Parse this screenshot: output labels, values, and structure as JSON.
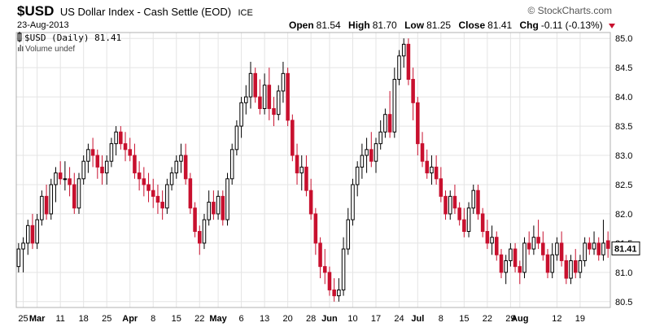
{
  "header": {
    "symbol": "$USD",
    "description": "US Dollar Index - Cash Settle (EOD)",
    "exchange": "ICE",
    "brand": "© StockCharts.com",
    "date": "23-Aug-2013",
    "quote": {
      "open_label": "Open",
      "open": "81.54",
      "high_label": "High",
      "high": "81.70",
      "low_label": "Low",
      "low": "81.25",
      "close_label": "Close",
      "close": "81.41",
      "chg_label": "Chg",
      "chg": "-0.11 (-0.13%)"
    }
  },
  "legend": {
    "series": "$USD (Daily) 81.41",
    "volume": "Volume undef"
  },
  "colors": {
    "up": "#000000",
    "down": "#c8102e",
    "grid": "#e4e4e4",
    "frame": "#b0b0b0"
  },
  "chart_data": {
    "type": "candlestick",
    "y_ticks": [
      80.5,
      81.0,
      81.5,
      82.0,
      82.5,
      83.0,
      83.5,
      84.0,
      84.5,
      85.0
    ],
    "ylim": [
      80.4,
      85.1
    ],
    "last_price": "81.41",
    "x_ticks": [
      {
        "label": "25",
        "bold": false
      },
      {
        "label": "Mar",
        "bold": true
      },
      {
        "label": "11",
        "bold": false
      },
      {
        "label": "18",
        "bold": false
      },
      {
        "label": "25",
        "bold": false
      },
      {
        "label": "Apr",
        "bold": true
      },
      {
        "label": "8",
        "bold": false
      },
      {
        "label": "15",
        "bold": false
      },
      {
        "label": "22",
        "bold": false
      },
      {
        "label": "May",
        "bold": true
      },
      {
        "label": "6",
        "bold": false
      },
      {
        "label": "13",
        "bold": false
      },
      {
        "label": "20",
        "bold": false
      },
      {
        "label": "28",
        "bold": false
      },
      {
        "label": "Jun",
        "bold": true
      },
      {
        "label": "10",
        "bold": false
      },
      {
        "label": "17",
        "bold": false
      },
      {
        "label": "24",
        "bold": false
      },
      {
        "label": "Jul",
        "bold": true
      },
      {
        "label": "8",
        "bold": false
      },
      {
        "label": "15",
        "bold": false
      },
      {
        "label": "22",
        "bold": false
      },
      {
        "label": "29",
        "bold": false
      },
      {
        "label": "Aug",
        "bold": true
      },
      {
        "label": "12",
        "bold": false
      },
      {
        "label": "19",
        "bold": false
      }
    ],
    "x_tick_index": [
      1,
      4,
      9,
      14,
      19,
      24,
      29,
      34,
      39,
      43,
      48,
      53,
      58,
      63,
      67,
      72,
      77,
      82,
      86,
      91,
      96,
      101,
      106,
      108,
      116,
      121
    ],
    "ohlc": [
      [
        81.1,
        81.5,
        81.0,
        81.4
      ],
      [
        81.4,
        81.6,
        81.0,
        81.5
      ],
      [
        81.5,
        81.9,
        81.3,
        81.8
      ],
      [
        81.8,
        82.0,
        81.4,
        81.5
      ],
      [
        81.5,
        82.0,
        81.4,
        81.9
      ],
      [
        81.9,
        82.4,
        81.8,
        82.3
      ],
      [
        82.3,
        82.5,
        81.9,
        82.0
      ],
      [
        82.0,
        82.6,
        81.9,
        82.5
      ],
      [
        82.5,
        82.8,
        82.2,
        82.7
      ],
      [
        82.7,
        82.9,
        82.5,
        82.6
      ],
      [
        82.6,
        82.9,
        82.4,
        82.6
      ],
      [
        82.6,
        82.8,
        82.3,
        82.5
      ],
      [
        82.5,
        82.7,
        82.0,
        82.1
      ],
      [
        82.1,
        82.7,
        82.0,
        82.6
      ],
      [
        82.6,
        83.0,
        82.5,
        82.9
      ],
      [
        82.9,
        83.2,
        82.7,
        83.1
      ],
      [
        83.1,
        83.3,
        82.8,
        83.0
      ],
      [
        83.0,
        83.1,
        82.6,
        82.8
      ],
      [
        82.8,
        83.0,
        82.5,
        82.7
      ],
      [
        82.7,
        83.0,
        82.5,
        82.9
      ],
      [
        82.9,
        83.3,
        82.8,
        83.2
      ],
      [
        83.2,
        83.5,
        83.0,
        83.4
      ],
      [
        83.4,
        83.5,
        83.1,
        83.2
      ],
      [
        83.2,
        83.4,
        82.9,
        83.1
      ],
      [
        83.1,
        83.3,
        82.9,
        83.0
      ],
      [
        83.0,
        83.2,
        82.6,
        82.7
      ],
      [
        82.7,
        82.9,
        82.4,
        82.6
      ],
      [
        82.6,
        82.8,
        82.3,
        82.5
      ],
      [
        82.5,
        82.7,
        82.2,
        82.4
      ],
      [
        82.4,
        82.6,
        82.1,
        82.3
      ],
      [
        82.3,
        82.5,
        82.0,
        82.2
      ],
      [
        82.2,
        82.4,
        81.9,
        82.1
      ],
      [
        82.1,
        82.6,
        82.0,
        82.5
      ],
      [
        82.5,
        82.8,
        82.4,
        82.7
      ],
      [
        82.7,
        83.0,
        82.6,
        82.9
      ],
      [
        82.9,
        83.2,
        82.7,
        83.0
      ],
      [
        83.0,
        83.2,
        82.5,
        82.6
      ],
      [
        82.6,
        82.7,
        82.0,
        82.1
      ],
      [
        82.1,
        82.2,
        81.6,
        81.7
      ],
      [
        81.7,
        81.8,
        81.3,
        81.5
      ],
      [
        81.5,
        82.0,
        81.4,
        81.9
      ],
      [
        81.9,
        82.4,
        81.8,
        82.2
      ],
      [
        82.2,
        82.4,
        81.9,
        82.0
      ],
      [
        82.0,
        82.4,
        81.9,
        82.3
      ],
      [
        82.3,
        82.4,
        81.8,
        81.9
      ],
      [
        81.9,
        82.7,
        81.8,
        82.6
      ],
      [
        82.6,
        83.2,
        82.5,
        83.1
      ],
      [
        83.1,
        83.6,
        83.0,
        83.5
      ],
      [
        83.5,
        84.0,
        83.3,
        83.9
      ],
      [
        83.9,
        84.2,
        83.7,
        84.0
      ],
      [
        84.0,
        84.6,
        83.8,
        84.4
      ],
      [
        84.4,
        84.5,
        83.9,
        84.0
      ],
      [
        84.0,
        84.3,
        83.7,
        83.8
      ],
      [
        83.8,
        84.4,
        83.7,
        84.2
      ],
      [
        84.2,
        84.5,
        83.6,
        83.8
      ],
      [
        83.8,
        84.0,
        83.5,
        83.7
      ],
      [
        83.7,
        84.2,
        83.6,
        84.1
      ],
      [
        84.1,
        84.6,
        83.9,
        84.4
      ],
      [
        84.4,
        84.5,
        83.5,
        83.6
      ],
      [
        83.6,
        83.7,
        82.9,
        83.0
      ],
      [
        83.0,
        83.2,
        82.5,
        82.7
      ],
      [
        82.7,
        83.0,
        82.4,
        82.8
      ],
      [
        82.8,
        83.0,
        82.3,
        82.4
      ],
      [
        82.4,
        82.6,
        81.9,
        82.0
      ],
      [
        82.0,
        82.1,
        81.3,
        81.5
      ],
      [
        81.5,
        81.6,
        80.9,
        81.1
      ],
      [
        81.1,
        81.4,
        80.8,
        81.0
      ],
      [
        81.0,
        81.1,
        80.6,
        80.7
      ],
      [
        80.7,
        80.9,
        80.5,
        80.6
      ],
      [
        80.6,
        80.9,
        80.5,
        80.7
      ],
      [
        80.7,
        81.6,
        80.6,
        81.4
      ],
      [
        81.4,
        82.1,
        81.3,
        81.9
      ],
      [
        81.9,
        82.6,
        81.8,
        82.5
      ],
      [
        82.5,
        82.9,
        82.3,
        82.8
      ],
      [
        82.8,
        83.2,
        82.6,
        83.0
      ],
      [
        83.0,
        83.3,
        82.7,
        83.1
      ],
      [
        83.1,
        83.4,
        82.8,
        82.9
      ],
      [
        82.9,
        83.3,
        82.7,
        83.2
      ],
      [
        83.2,
        83.6,
        83.1,
        83.4
      ],
      [
        83.4,
        83.8,
        83.3,
        83.7
      ],
      [
        83.7,
        84.1,
        83.3,
        83.4
      ],
      [
        83.4,
        84.5,
        83.3,
        84.3
      ],
      [
        84.3,
        84.8,
        84.2,
        84.7
      ],
      [
        84.7,
        85.0,
        84.5,
        84.9
      ],
      [
        84.9,
        85.0,
        84.2,
        84.3
      ],
      [
        84.3,
        84.5,
        83.6,
        83.9
      ],
      [
        83.9,
        84.0,
        83.0,
        83.2
      ],
      [
        83.2,
        83.4,
        82.8,
        82.9
      ],
      [
        82.9,
        83.1,
        82.6,
        82.7
      ],
      [
        82.7,
        83.0,
        82.5,
        82.8
      ],
      [
        82.8,
        83.0,
        82.5,
        82.6
      ],
      [
        82.6,
        82.8,
        82.2,
        82.3
      ],
      [
        82.3,
        82.4,
        81.9,
        82.0
      ],
      [
        82.0,
        82.4,
        81.9,
        82.3
      ],
      [
        82.3,
        82.5,
        82.0,
        82.1
      ],
      [
        82.1,
        82.2,
        81.8,
        81.9
      ],
      [
        81.9,
        82.1,
        81.6,
        81.7
      ],
      [
        81.7,
        82.2,
        81.6,
        82.1
      ],
      [
        82.1,
        82.5,
        82.0,
        82.4
      ],
      [
        82.4,
        82.5,
        81.9,
        82.0
      ],
      [
        82.0,
        82.1,
        81.6,
        81.7
      ],
      [
        81.7,
        81.9,
        81.4,
        81.5
      ],
      [
        81.5,
        81.8,
        81.3,
        81.6
      ],
      [
        81.6,
        81.7,
        81.2,
        81.3
      ],
      [
        81.3,
        81.4,
        80.9,
        81.0
      ],
      [
        81.0,
        81.3,
        80.8,
        81.2
      ],
      [
        81.2,
        81.5,
        81.1,
        81.4
      ],
      [
        81.4,
        81.5,
        81.0,
        81.1
      ],
      [
        81.1,
        81.2,
        80.8,
        81.0
      ],
      [
        81.0,
        81.6,
        80.9,
        81.5
      ],
      [
        81.5,
        81.7,
        81.3,
        81.4
      ],
      [
        81.4,
        81.8,
        81.3,
        81.6
      ],
      [
        81.6,
        81.9,
        81.4,
        81.5
      ],
      [
        81.5,
        81.7,
        81.2,
        81.3
      ],
      [
        81.3,
        81.4,
        80.9,
        81.0
      ],
      [
        81.0,
        81.5,
        80.9,
        81.3
      ],
      [
        81.3,
        81.6,
        81.2,
        81.5
      ],
      [
        81.5,
        81.7,
        81.1,
        81.2
      ],
      [
        81.2,
        81.3,
        80.8,
        80.9
      ],
      [
        80.9,
        81.3,
        80.8,
        81.2
      ],
      [
        81.2,
        81.4,
        80.9,
        81.0
      ],
      [
        81.0,
        81.3,
        80.9,
        81.2
      ],
      [
        81.2,
        81.6,
        81.1,
        81.5
      ],
      [
        81.5,
        81.6,
        81.3,
        81.4
      ],
      [
        81.4,
        81.7,
        81.3,
        81.5
      ],
      [
        81.5,
        81.6,
        81.2,
        81.3
      ],
      [
        81.3,
        81.9,
        81.2,
        81.5
      ],
      [
        81.54,
        81.7,
        81.25,
        81.41
      ]
    ]
  }
}
